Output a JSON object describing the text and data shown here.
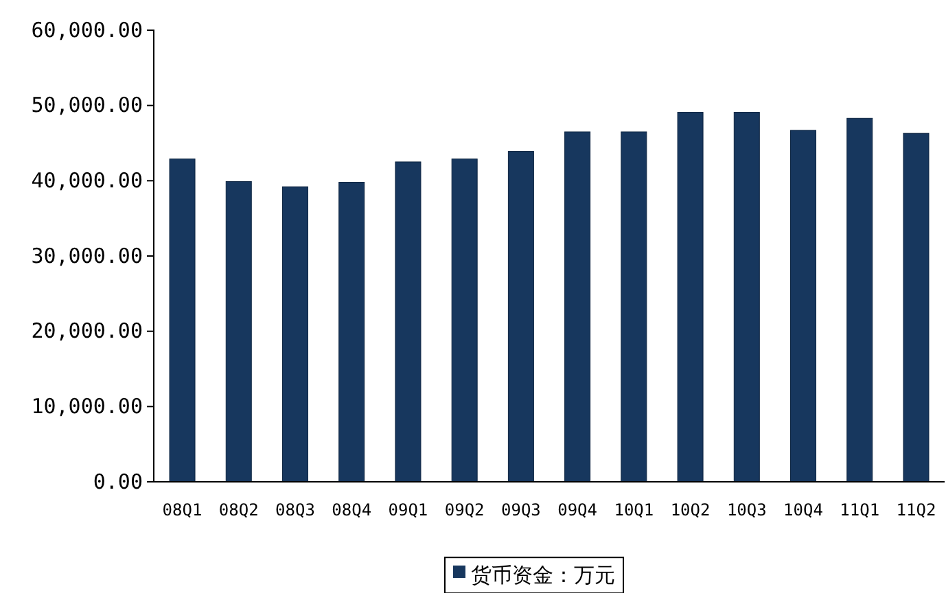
{
  "chart_data": {
    "type": "bar",
    "categories": [
      "08Q1",
      "08Q2",
      "08Q3",
      "08Q4",
      "09Q1",
      "09Q2",
      "09Q3",
      "09Q4",
      "10Q1",
      "10Q2",
      "10Q3",
      "10Q4",
      "11Q1",
      "11Q2"
    ],
    "series": [
      {
        "name": "货币资金：万元",
        "color": "#17375e",
        "values": [
          42900,
          39900,
          39200,
          39800,
          42500,
          42900,
          43900,
          46500,
          46500,
          49100,
          49100,
          46700,
          48300,
          46300
        ]
      }
    ],
    "ylim": [
      0,
      60000
    ],
    "yticks": [
      {
        "value": 0,
        "label": "0.00"
      },
      {
        "value": 10000,
        "label": "10,000.00"
      },
      {
        "value": 20000,
        "label": "20,000.00"
      },
      {
        "value": 30000,
        "label": "30,000.00"
      },
      {
        "value": 40000,
        "label": "40,000.00"
      },
      {
        "value": 50000,
        "label": "50,000.00"
      },
      {
        "value": 60000,
        "label": "60,000.00"
      }
    ],
    "grid": false,
    "legend": "bottom"
  }
}
